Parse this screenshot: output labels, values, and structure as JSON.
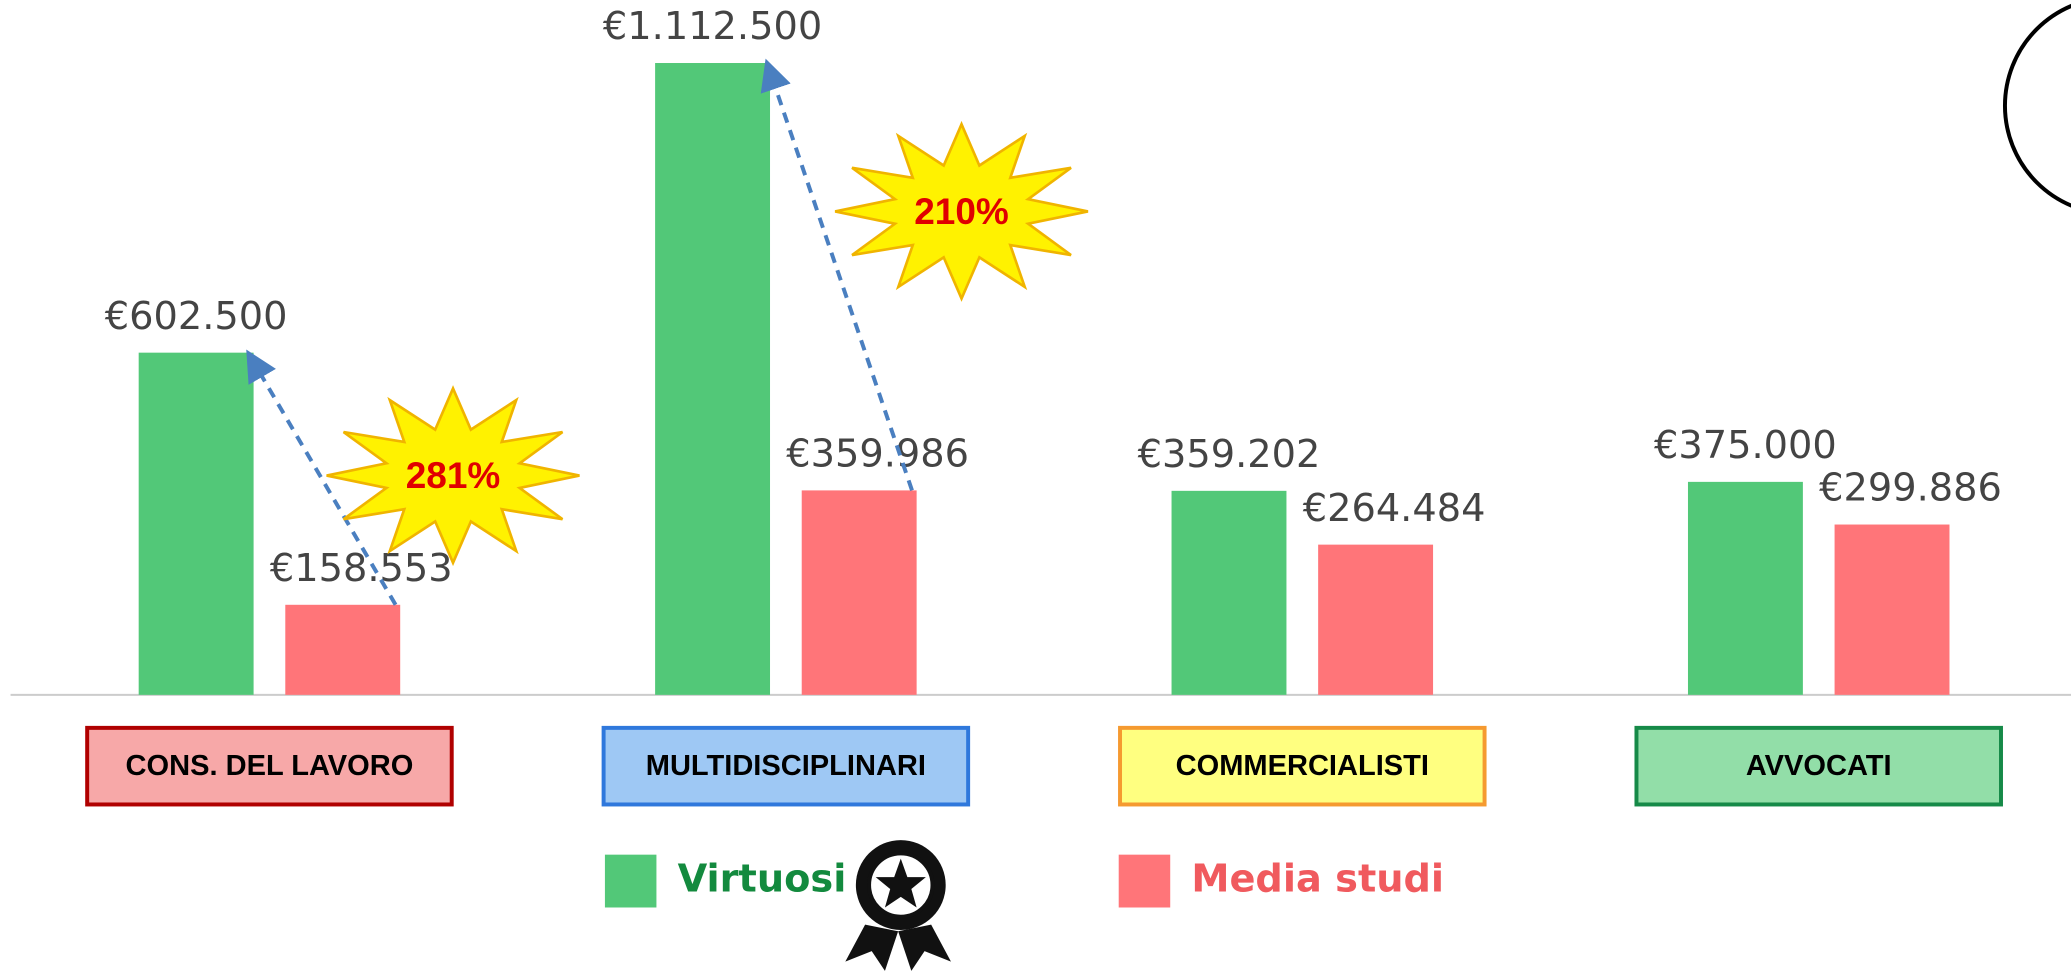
{
  "chart_data": {
    "type": "bar",
    "categories": [
      "CONS. DEL LAVORO",
      "MULTIDISCIPLINARI",
      "COMMERCIALISTI",
      "AVVOCATI"
    ],
    "series": [
      {
        "name": "Virtuosi",
        "color": "#52c878",
        "values": [
          602500,
          1112500,
          359202,
          375000
        ],
        "value_labels": [
          "€602.500",
          "€1.112.500",
          "€359.202",
          "€375.000"
        ]
      },
      {
        "name": "Media studi",
        "color": "#ff7579",
        "values": [
          158553,
          359986,
          264484,
          299886
        ],
        "value_labels": [
          "€158.553",
          "€359.986",
          "€264.484",
          "€299.886"
        ]
      }
    ],
    "annotations": [
      "281%",
      "210%"
    ],
    "ylim": [
      0,
      1200000
    ],
    "legend": "bottom"
  }
}
